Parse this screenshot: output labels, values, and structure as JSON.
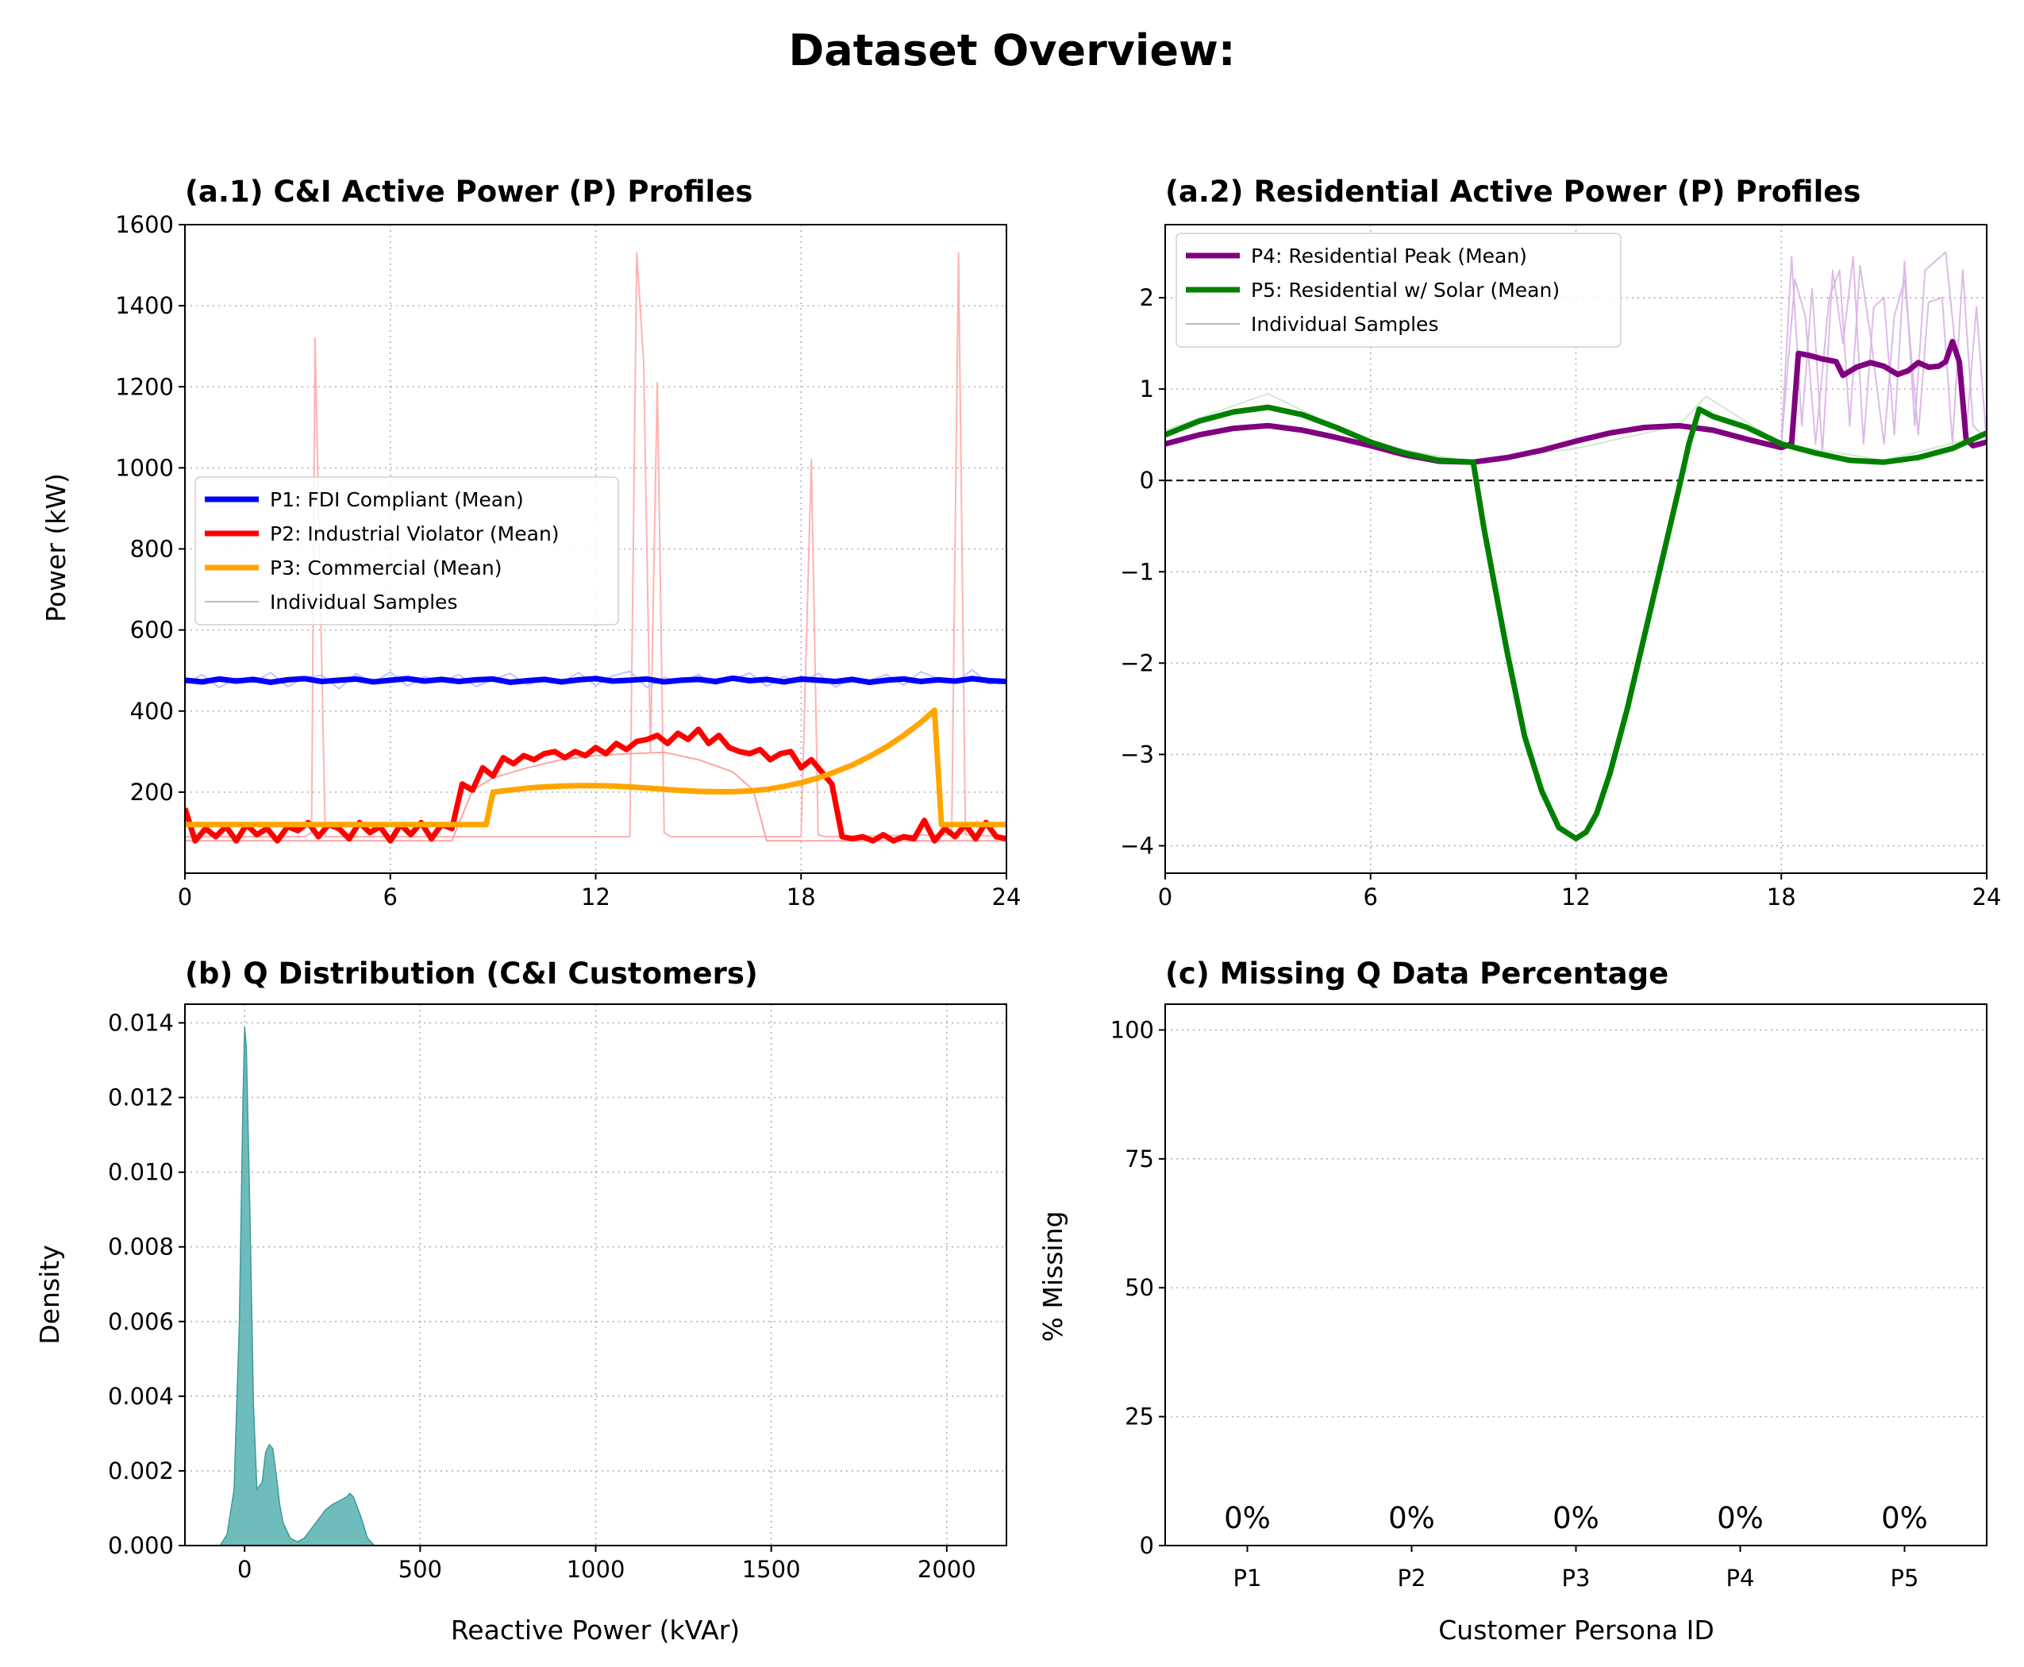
{
  "figure": {
    "title": "Dataset Overview:"
  },
  "chart_data": [
    {
      "id": "a1",
      "type": "line",
      "title": "(a.1) C&I Active Power (P) Profiles",
      "xlabel": "",
      "ylabel": "Power (kW)",
      "xlim": [
        0,
        24
      ],
      "ylim": [
        0,
        1600
      ],
      "xticks": [
        0,
        6,
        12,
        18,
        24
      ],
      "yticks": [
        200,
        400,
        600,
        800,
        1000,
        1200,
        1400,
        1600
      ],
      "grid": true,
      "legend_position": "center-left",
      "legend": [
        {
          "label": "P1: FDI Compliant (Mean)",
          "color": "#0000ff"
        },
        {
          "label": "P2: Industrial Violator (Mean)",
          "color": "#ff0000"
        },
        {
          "label": "P3: Commercial (Mean)",
          "color": "#ffa500"
        },
        {
          "label": "Individual Samples",
          "color": "#bbbbbb"
        }
      ],
      "series": [
        {
          "name": "P1: FDI Compliant (Mean)",
          "color": "#0000ff",
          "width": 3,
          "x": [
            0,
            0.5,
            1,
            1.5,
            2,
            2.5,
            3,
            3.5,
            4,
            4.5,
            5,
            5.5,
            6,
            6.5,
            7,
            7.5,
            8,
            8.5,
            9,
            9.5,
            10,
            10.5,
            11,
            11.5,
            12,
            12.5,
            13,
            13.5,
            14,
            14.5,
            15,
            15.5,
            16,
            16.5,
            17,
            17.5,
            18,
            18.5,
            19,
            19.5,
            20,
            20.5,
            21,
            21.5,
            22,
            22.5,
            23,
            23.5,
            24
          ],
          "y": [
            476,
            472,
            479,
            474,
            478,
            471,
            477,
            480,
            473,
            476,
            479,
            472,
            476,
            480,
            474,
            478,
            473,
            477,
            479,
            471,
            475,
            478,
            472,
            477,
            480,
            474,
            476,
            479,
            472,
            476,
            478,
            473,
            481,
            475,
            478,
            472,
            479,
            476,
            473,
            478,
            471,
            476,
            479,
            473,
            477,
            474,
            480,
            475,
            473
          ]
        },
        {
          "name": "P2: Industrial Violator (Mean)",
          "color": "#ff0000",
          "width": 3,
          "x": [
            0,
            0.3,
            0.6,
            0.9,
            1.2,
            1.5,
            1.8,
            2.1,
            2.4,
            2.7,
            3,
            3.3,
            3.6,
            3.9,
            4.2,
            4.5,
            4.8,
            5.1,
            5.4,
            5.7,
            6,
            6.3,
            6.6,
            6.9,
            7.2,
            7.5,
            7.8,
            8.1,
            8.4,
            8.7,
            9,
            9.3,
            9.6,
            9.9,
            10.2,
            10.5,
            10.8,
            11.1,
            11.4,
            11.7,
            12,
            12.3,
            12.6,
            12.9,
            13.2,
            13.5,
            13.8,
            14.1,
            14.4,
            14.7,
            15,
            15.3,
            15.6,
            15.9,
            16.2,
            16.5,
            16.8,
            17.1,
            17.4,
            17.7,
            18,
            18.3,
            18.6,
            18.9,
            19.2,
            19.5,
            19.8,
            20.1,
            20.4,
            20.7,
            21,
            21.3,
            21.6,
            21.9,
            22.2,
            22.5,
            22.8,
            23.1,
            23.4,
            23.7,
            24
          ],
          "y": [
            160,
            80,
            110,
            90,
            115,
            80,
            120,
            95,
            110,
            80,
            115,
            105,
            125,
            90,
            120,
            110,
            85,
            125,
            100,
            115,
            80,
            120,
            95,
            125,
            85,
            120,
            110,
            220,
            205,
            260,
            240,
            285,
            270,
            290,
            280,
            295,
            300,
            285,
            300,
            290,
            310,
            295,
            320,
            305,
            325,
            330,
            340,
            320,
            345,
            330,
            355,
            320,
            340,
            310,
            300,
            295,
            305,
            280,
            295,
            300,
            260,
            280,
            250,
            220,
            90,
            85,
            90,
            80,
            95,
            80,
            90,
            85,
            130,
            80,
            110,
            90,
            120,
            85,
            125,
            90,
            85
          ]
        },
        {
          "name": "P3: Commercial (Mean)",
          "color": "#ffa500",
          "width": 3,
          "x": [
            0,
            0.5,
            1,
            2,
            3,
            4,
            5,
            6,
            7,
            8,
            8.7,
            8.8,
            9,
            9.5,
            10,
            10.5,
            11,
            11.5,
            12,
            12.5,
            13,
            13.5,
            14,
            14.5,
            15,
            15.5,
            16,
            16.5,
            17,
            17.5,
            18,
            18.5,
            19,
            19.5,
            20,
            20.5,
            21,
            21.5,
            21.9,
            22.1,
            22.5,
            23,
            24
          ],
          "y": [
            120,
            120,
            120,
            120,
            120,
            120,
            120,
            120,
            120,
            120,
            120,
            120,
            200,
            205,
            210,
            213,
            215,
            216,
            216,
            215,
            213,
            210,
            207,
            204,
            202,
            201,
            201,
            203,
            207,
            214,
            223,
            235,
            250,
            267,
            288,
            312,
            340,
            372,
            402,
            120,
            120,
            120,
            120
          ]
        }
      ],
      "samples": [
        {
          "color": "#ffaaaa",
          "x": [
            0,
            3.5,
            3.7,
            3.8,
            4.1,
            4.3,
            13,
            13.2,
            13.4,
            13.6,
            13.8,
            14,
            14.2,
            18,
            18.3,
            18.5,
            18.7,
            22.4,
            22.6,
            22.8,
            24
          ],
          "y": [
            90,
            90,
            100,
            1320,
            90,
            90,
            90,
            1530,
            1260,
            300,
            1210,
            100,
            90,
            90,
            1020,
            95,
            90,
            95,
            1530,
            95,
            90
          ]
        },
        {
          "color": "#ff9999",
          "x": [
            0,
            7.8,
            8.4,
            9,
            10,
            11,
            12,
            13,
            14,
            15,
            16,
            16.6,
            17,
            18,
            24
          ],
          "y": [
            80,
            80,
            205,
            235,
            260,
            280,
            290,
            295,
            298,
            280,
            250,
            205,
            80,
            80,
            80
          ]
        },
        {
          "color": "#bbbbff",
          "x": [
            0,
            0.5,
            1,
            1.5,
            2,
            2.5,
            3,
            3.5,
            4,
            4.5,
            5,
            5.5,
            6,
            6.5,
            7,
            7.5,
            8,
            8.5,
            9,
            9.5,
            10,
            10.5,
            11,
            11.5,
            12,
            12.5,
            13,
            13.5,
            14,
            14.5,
            15,
            15.5,
            16,
            16.5,
            17,
            17.5,
            18,
            18.5,
            19,
            19.5,
            20,
            20.5,
            21,
            21.5,
            22,
            22.5,
            23,
            23.5,
            24
          ],
          "y": [
            466,
            490,
            458,
            482,
            470,
            495,
            460,
            483,
            488,
            455,
            492,
            470,
            496,
            462,
            485,
            472,
            490,
            460,
            478,
            493,
            465,
            482,
            470,
            495,
            463,
            487,
            498,
            458,
            483,
            472,
            490,
            466,
            478,
            494,
            461,
            486,
            470,
            493,
            459,
            482,
            476,
            490,
            464,
            497,
            480,
            470,
            502,
            466,
            478
          ]
        }
      ]
    },
    {
      "id": "a2",
      "type": "line",
      "title": "(a.2) Residential Active Power (P) Profiles",
      "xlabel": "",
      "ylabel": "",
      "xlim": [
        0,
        24
      ],
      "ylim": [
        -4.3,
        2.8
      ],
      "xticks": [
        0,
        6,
        12,
        18,
        24
      ],
      "yticks": [
        -4,
        -3,
        -2,
        -1,
        0,
        1,
        2
      ],
      "ytick_labels": [
        "−4",
        "−3",
        "−2",
        "−1",
        "0",
        "1",
        "2"
      ],
      "zero_line": true,
      "grid": true,
      "legend_position": "top-left",
      "legend": [
        {
          "label": "P4: Residential Peak (Mean)",
          "color": "#800080"
        },
        {
          "label": "P5: Residential w/ Solar (Mean)",
          "color": "#008000"
        },
        {
          "label": "Individual Samples",
          "color": "#bbbbbb"
        }
      ],
      "series": [
        {
          "name": "P4: Residential Peak (Mean)",
          "color": "#800080",
          "width": 3,
          "x": [
            0,
            1,
            2,
            3,
            4,
            5,
            6,
            7,
            8,
            9,
            10,
            11,
            12,
            13,
            14,
            15,
            16,
            17,
            18,
            18.3,
            18.5,
            18.8,
            19.2,
            19.6,
            19.8,
            20.2,
            20.6,
            21,
            21.4,
            21.7,
            22,
            22.3,
            22.6,
            22.8,
            23,
            23.2,
            23.4,
            23.6,
            24
          ],
          "y": [
            0.4,
            0.5,
            0.57,
            0.6,
            0.55,
            0.47,
            0.38,
            0.28,
            0.21,
            0.2,
            0.25,
            0.33,
            0.43,
            0.52,
            0.58,
            0.6,
            0.55,
            0.45,
            0.36,
            0.4,
            1.39,
            1.37,
            1.33,
            1.3,
            1.15,
            1.24,
            1.29,
            1.25,
            1.16,
            1.2,
            1.29,
            1.24,
            1.25,
            1.3,
            1.52,
            1.3,
            0.45,
            0.38,
            0.42
          ]
        },
        {
          "name": "P5: Residential w/ Solar (Mean)",
          "color": "#008000",
          "width": 3,
          "x": [
            0,
            1,
            2,
            3,
            4,
            5,
            6,
            7,
            8,
            9,
            9.3,
            9.7,
            10,
            10.5,
            11,
            11.5,
            12,
            12.3,
            12.6,
            13,
            13.5,
            14,
            14.5,
            15,
            15.3,
            15.6,
            16,
            17,
            18,
            19,
            20,
            21,
            22,
            23,
            24
          ],
          "y": [
            0.5,
            0.65,
            0.75,
            0.8,
            0.72,
            0.58,
            0.42,
            0.3,
            0.22,
            0.2,
            -0.5,
            -1.3,
            -1.9,
            -2.8,
            -3.4,
            -3.8,
            -3.92,
            -3.85,
            -3.65,
            -3.2,
            -2.5,
            -1.7,
            -0.9,
            -0.1,
            0.4,
            0.78,
            0.7,
            0.58,
            0.4,
            0.3,
            0.22,
            0.2,
            0.25,
            0.35,
            0.52
          ]
        }
      ],
      "samples": [
        {
          "color": "#d9b3e6",
          "x": [
            18,
            18.3,
            18.6,
            18.9,
            19.2,
            19.5,
            19.8,
            20.1,
            20.4,
            20.7,
            21,
            21.3,
            21.6,
            21.9,
            22.2,
            22.5,
            22.8,
            23.1,
            23.4,
            23.7,
            24
          ],
          "y": [
            0.4,
            2.45,
            0.6,
            2.1,
            0.3,
            2.3,
            1.5,
            2.45,
            0.4,
            1.9,
            2.0,
            0.5,
            2.4,
            0.6,
            2.3,
            2.4,
            2.5,
            1.4,
            0.5,
            1.9,
            0.4
          ]
        },
        {
          "color": "#d9b3e6",
          "x": [
            18,
            18.4,
            18.7,
            19,
            19.4,
            19.7,
            20,
            20.3,
            20.6,
            21,
            21.3,
            21.6,
            22,
            22.3,
            22.7,
            23,
            23.3,
            23.6,
            24
          ],
          "y": [
            0.4,
            2.2,
            1.8,
            0.4,
            2.0,
            2.3,
            0.6,
            2.35,
            1.6,
            0.4,
            1.8,
            2.2,
            0.5,
            1.95,
            2.0,
            0.4,
            2.3,
            0.6,
            0.45
          ]
        },
        {
          "color": "#cce6cc",
          "x": [
            0,
            3,
            6,
            9,
            12,
            15,
            15.8,
            18,
            21,
            24
          ],
          "y": [
            0.55,
            0.95,
            0.4,
            0.2,
            0.35,
            0.6,
            0.92,
            0.4,
            0.22,
            0.5
          ]
        }
      ]
    },
    {
      "id": "b",
      "type": "area",
      "title": "(b) Q Distribution (C&I Customers)",
      "xlabel": "Reactive Power (kVAr)",
      "ylabel": "Density",
      "xlim": [
        -170,
        2170
      ],
      "ylim": [
        0,
        0.0145
      ],
      "xticks": [
        0,
        500,
        1000,
        1500,
        2000
      ],
      "yticks": [
        0.0,
        0.002,
        0.004,
        0.006,
        0.008,
        0.01,
        0.012,
        0.014
      ],
      "ytick_labels": [
        "0.000",
        "0.002",
        "0.004",
        "0.006",
        "0.008",
        "0.010",
        "0.012",
        "0.014"
      ],
      "grid": true,
      "color": "#5fb5b5",
      "x": [
        -70,
        -50,
        -30,
        -15,
        -5,
        0,
        5,
        15,
        25,
        35,
        50,
        60,
        70,
        80,
        90,
        100,
        110,
        130,
        150,
        170,
        190,
        210,
        230,
        250,
        270,
        290,
        300,
        310,
        330,
        350,
        370
      ],
      "y": [
        0,
        0.0003,
        0.0015,
        0.006,
        0.0118,
        0.0139,
        0.0133,
        0.009,
        0.0038,
        0.0015,
        0.0017,
        0.0025,
        0.0027,
        0.0026,
        0.0019,
        0.0011,
        0.0006,
        0.0002,
        0.0001,
        0.0002,
        0.00045,
        0.0007,
        0.00095,
        0.0011,
        0.0012,
        0.0013,
        0.0014,
        0.0013,
        0.0008,
        0.0002,
        0
      ]
    },
    {
      "id": "c",
      "type": "bar",
      "title": "(c) Missing Q Data Percentage",
      "xlabel": "Customer Persona ID",
      "ylabel": "% Missing",
      "ylim": [
        0,
        105
      ],
      "yticks": [
        0,
        25,
        50,
        75,
        100
      ],
      "grid": true,
      "categories": [
        "P1",
        "P2",
        "P3",
        "P4",
        "P5"
      ],
      "values": [
        0,
        0,
        0,
        0,
        0
      ],
      "data_labels": [
        "0%",
        "0%",
        "0%",
        "0%",
        "0%"
      ]
    }
  ]
}
